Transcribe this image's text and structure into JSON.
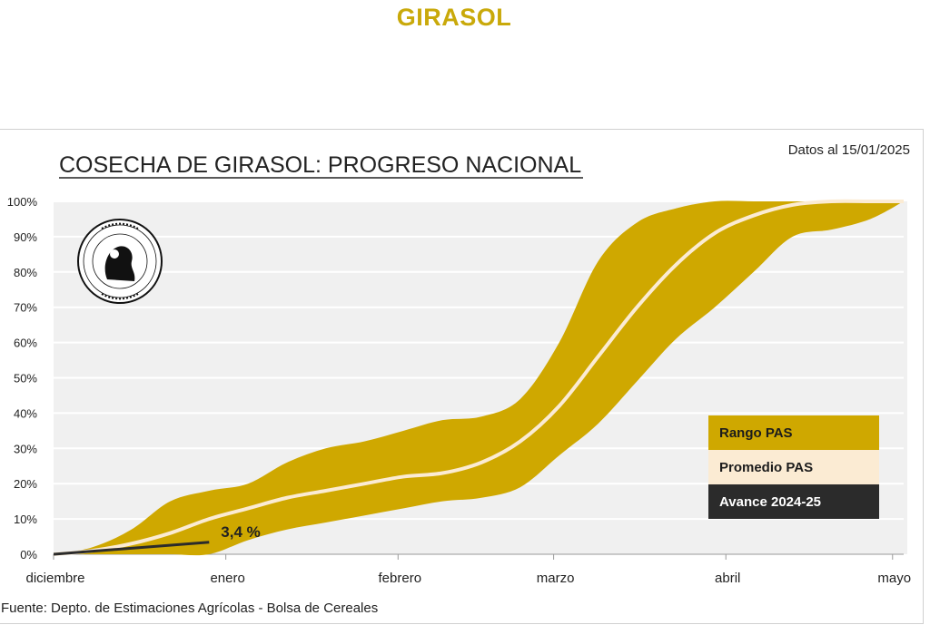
{
  "page_title": "GIRASOL",
  "chart_data": {
    "type": "area",
    "title": "COSECHA DE GIRASOL: PROGRESO NACIONAL",
    "subtitle": "Datos al 15/01/2025",
    "source": "Fuente: Depto. de Estimaciones Agrícolas - Bolsa de Cereales",
    "x_unit": "days since 1 December",
    "x_ticks": [
      {
        "label": "diciembre",
        "value": 0
      },
      {
        "label": "enero",
        "value": 31
      },
      {
        "label": "febrero",
        "value": 62
      },
      {
        "label": "marzo",
        "value": 90
      },
      {
        "label": "abril",
        "value": 121
      },
      {
        "label": "mayo",
        "value": 151
      }
    ],
    "xlim": [
      0,
      153
    ],
    "ylim": [
      0,
      100
    ],
    "y_ticks": [
      "0%",
      "10%",
      "20%",
      "30%",
      "40%",
      "50%",
      "60%",
      "70%",
      "80%",
      "90%",
      "100%"
    ],
    "grid": true,
    "legend_position": "right",
    "series": [
      {
        "name": "Rango PAS",
        "kind": "band",
        "color": "#cfa800",
        "upper": [
          [
            0,
            0
          ],
          [
            7,
            2
          ],
          [
            14,
            7
          ],
          [
            21,
            15
          ],
          [
            28,
            18
          ],
          [
            35,
            20
          ],
          [
            42,
            26
          ],
          [
            49,
            30
          ],
          [
            56,
            32
          ],
          [
            63,
            35
          ],
          [
            70,
            38
          ],
          [
            77,
            39
          ],
          [
            84,
            44
          ],
          [
            91,
            60
          ],
          [
            98,
            83
          ],
          [
            105,
            94
          ],
          [
            112,
            98
          ],
          [
            119,
            100
          ],
          [
            126,
            100
          ],
          [
            133,
            100
          ],
          [
            140,
            100
          ],
          [
            147,
            100
          ],
          [
            153,
            100
          ]
        ],
        "lower": [
          [
            0,
            0
          ],
          [
            7,
            0
          ],
          [
            14,
            0
          ],
          [
            21,
            0
          ],
          [
            28,
            0
          ],
          [
            35,
            4
          ],
          [
            42,
            7
          ],
          [
            49,
            9
          ],
          [
            56,
            11
          ],
          [
            63,
            13
          ],
          [
            70,
            15
          ],
          [
            77,
            16
          ],
          [
            84,
            19
          ],
          [
            91,
            28
          ],
          [
            98,
            37
          ],
          [
            105,
            49
          ],
          [
            112,
            61
          ],
          [
            119,
            70
          ],
          [
            126,
            80
          ],
          [
            133,
            90
          ],
          [
            140,
            92
          ],
          [
            147,
            95
          ],
          [
            153,
            100
          ]
        ]
      },
      {
        "name": "Promedio PAS",
        "kind": "line",
        "color": "#fbebd3",
        "points": [
          [
            0,
            0
          ],
          [
            7,
            1
          ],
          [
            14,
            3
          ],
          [
            21,
            6
          ],
          [
            28,
            10
          ],
          [
            35,
            13
          ],
          [
            42,
            16
          ],
          [
            49,
            18
          ],
          [
            56,
            20
          ],
          [
            63,
            22
          ],
          [
            70,
            23
          ],
          [
            77,
            26
          ],
          [
            84,
            32
          ],
          [
            91,
            42
          ],
          [
            98,
            56
          ],
          [
            105,
            70
          ],
          [
            112,
            82
          ],
          [
            119,
            91
          ],
          [
            126,
            96
          ],
          [
            133,
            99
          ],
          [
            140,
            100
          ],
          [
            147,
            100
          ],
          [
            153,
            100
          ]
        ]
      },
      {
        "name": "Avance 2024-25",
        "kind": "line",
        "color": "#2b2b2b",
        "points": [
          [
            0,
            0
          ],
          [
            28,
            3.4
          ]
        ],
        "label": "3,4 %"
      }
    ]
  }
}
